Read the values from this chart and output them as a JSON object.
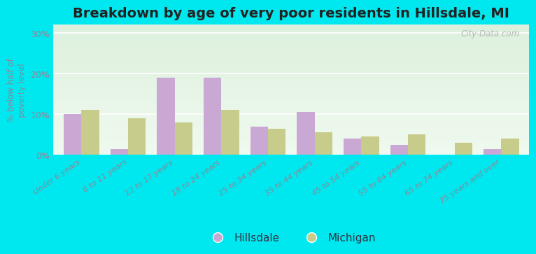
{
  "title": "Breakdown by age of very poor residents in Hillsdale, MI",
  "ylabel": "% below half of\npoverty level",
  "categories": [
    "Under 6 years",
    "6 to 11 years",
    "12 to 17 years",
    "18 to 24 years",
    "25 to 34 years",
    "35 to 44 years",
    "45 to 54 years",
    "55 to 64 years",
    "65 to 74 years",
    "75 years and over"
  ],
  "hillsdale_values": [
    10,
    1.5,
    19,
    19,
    7,
    10.5,
    4,
    2.5,
    0,
    1.5
  ],
  "michigan_values": [
    11,
    9,
    8,
    11,
    6.5,
    5.5,
    4.5,
    5,
    3,
    4
  ],
  "hillsdale_color": "#c9a8d4",
  "michigan_color": "#c8cc8a",
  "background_outer": "#00e8ef",
  "ylim": [
    0,
    32
  ],
  "yticks": [
    0,
    10,
    20,
    30
  ],
  "ytick_labels": [
    "0%",
    "10%",
    "20%",
    "30%"
  ],
  "title_fontsize": 14,
  "bar_width": 0.38,
  "watermark": "City-Data.com",
  "tick_label_color": "#888899",
  "axis_label_color": "#888899"
}
